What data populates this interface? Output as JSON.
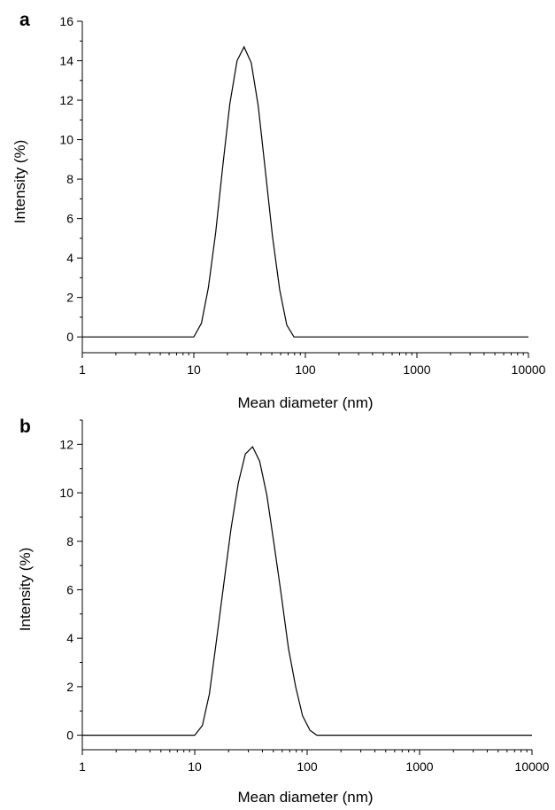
{
  "chart_data": [
    {
      "type": "line",
      "panel_label": "a",
      "xlabel": "Mean diameter (nm)",
      "ylabel": "Intensity (%)",
      "xscale": "log",
      "xlim": [
        1,
        10000
      ],
      "ylim": [
        -0.8,
        16
      ],
      "xticks": [
        1,
        10,
        100,
        1000,
        10000
      ],
      "xtick_labels": [
        "1",
        "10",
        "100",
        "1000",
        "10000"
      ],
      "yticks": [
        0,
        2,
        4,
        6,
        8,
        10,
        12,
        14,
        16
      ],
      "ytick_labels": [
        "0",
        "2",
        "4",
        "6",
        "8",
        "10",
        "12",
        "14",
        "16"
      ],
      "grid": false,
      "series": [
        {
          "x": [
            1,
            10,
            11.7,
            13.5,
            15.7,
            18.2,
            21.0,
            24.4,
            28.2,
            32.7,
            37.8,
            43.8,
            50.7,
            58.8,
            68.1,
            79,
            10000
          ],
          "y": [
            0,
            0,
            0.7,
            2.5,
            5.3,
            8.7,
            11.8,
            14.0,
            14.7,
            13.9,
            11.7,
            8.4,
            5.1,
            2.4,
            0.6,
            0,
            0
          ]
        }
      ]
    },
    {
      "type": "line",
      "panel_label": "b",
      "xlabel": "Mean diameter (nm)",
      "ylabel": "Intensity (%)",
      "xscale": "log",
      "xlim": [
        1,
        10000
      ],
      "ylim": [
        -0.6,
        13
      ],
      "xticks": [
        1,
        10,
        100,
        1000,
        10000
      ],
      "xtick_labels": [
        "1",
        "10",
        "100",
        "1000",
        "10000"
      ],
      "yticks": [
        0,
        2,
        4,
        6,
        8,
        10,
        12
      ],
      "ytick_labels": [
        "0",
        "2",
        "4",
        "6",
        "8",
        "10",
        "12"
      ],
      "grid": false,
      "series": [
        {
          "x": [
            1,
            10,
            11.7,
            13.5,
            15.7,
            18.2,
            21.0,
            24.4,
            28.2,
            32.7,
            37.8,
            43.8,
            50.7,
            58.8,
            68.1,
            79,
            91,
            106,
            122,
            10000
          ],
          "y": [
            0,
            0,
            0.4,
            1.7,
            4.0,
            6.3,
            8.5,
            10.4,
            11.6,
            11.9,
            11.3,
            9.9,
            7.9,
            5.8,
            3.6,
            2.0,
            0.8,
            0.2,
            0,
            0
          ]
        }
      ]
    }
  ]
}
